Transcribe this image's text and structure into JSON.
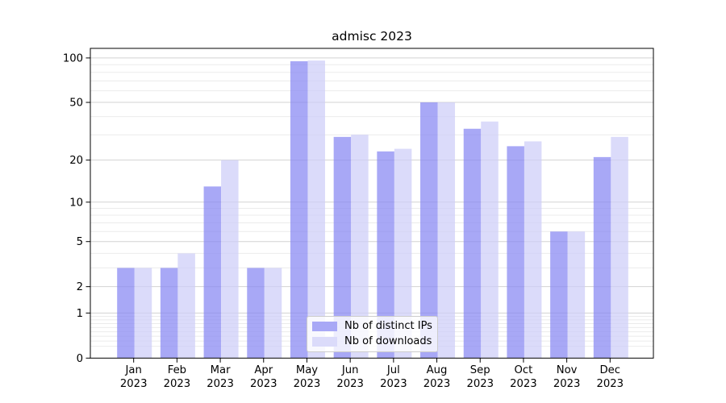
{
  "figure": {
    "title": "admisc 2023",
    "background": "#ffffff"
  },
  "chart_data": {
    "type": "bar",
    "title": "admisc 2023",
    "categories": [
      "Jan 2023",
      "Feb 2023",
      "Mar 2023",
      "Apr 2023",
      "May 2023",
      "Jun 2023",
      "Jul 2023",
      "Aug 2023",
      "Sep 2023",
      "Oct 2023",
      "Nov 2023",
      "Dec 2023"
    ],
    "month_labels": [
      "Jan",
      "Feb",
      "Mar",
      "Apr",
      "May",
      "Jun",
      "Jul",
      "Aug",
      "Sep",
      "Oct",
      "Nov",
      "Dec"
    ],
    "year_label": "2023",
    "series": [
      {
        "name": "Nb of distinct IPs",
        "values": [
          3,
          3,
          13,
          3,
          95,
          29,
          23,
          50,
          33,
          25,
          6,
          21
        ],
        "fill": "rgba(135,135,242,0.72)",
        "legend_color": "#a8a8f6"
      },
      {
        "name": "Nb of downloads",
        "values": [
          3,
          4,
          20,
          3,
          96,
          30,
          24,
          50,
          37,
          27,
          6,
          29
        ],
        "fill": "rgba(205,205,248,0.72)",
        "legend_color": "#dbdbfa"
      }
    ],
    "xlabel": "",
    "ylabel": "",
    "y_scale": "log(value+1)",
    "y_ticks_major": [
      100,
      50,
      20,
      10,
      5,
      2,
      1,
      0
    ],
    "y_ticks_minor": [
      0.2,
      0.3,
      0.4,
      0.5,
      0.6,
      0.7,
      0.8,
      0.9,
      3,
      4,
      6,
      7,
      8,
      9,
      30,
      40,
      60,
      70,
      80,
      90
    ],
    "ylim": [
      0,
      117
    ],
    "grid": "on",
    "legend_position": "lower center",
    "colors": {
      "grid_major": "#d3d3d3",
      "grid_minor": "#ebebeb",
      "spine": "#000000",
      "tick_text": "#000000"
    }
  }
}
